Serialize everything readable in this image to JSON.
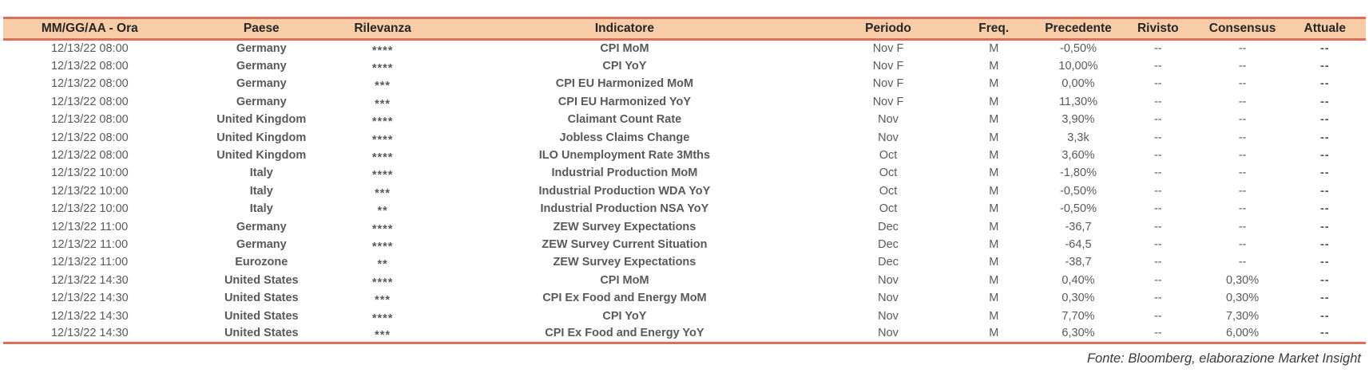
{
  "colors": {
    "accent_border": "#DE6E5A",
    "header_bg": "#F8CCA6",
    "relevance_star": "#E2604C",
    "header_text": "#262626",
    "bold_text": "#1a1a1a",
    "muted_text": "#595959"
  },
  "table": {
    "columns": [
      {
        "key": "datetime",
        "label": "MM/GG/AA - Ora"
      },
      {
        "key": "country",
        "label": "Paese"
      },
      {
        "key": "relevance",
        "label": "Rilevanza"
      },
      {
        "key": "indicator",
        "label": "Indicatore"
      },
      {
        "key": "period",
        "label": "Periodo"
      },
      {
        "key": "freq",
        "label": "Freq."
      },
      {
        "key": "previous",
        "label": "Precedente"
      },
      {
        "key": "revised",
        "label": "Rivisto"
      },
      {
        "key": "consensus",
        "label": "Consensus"
      },
      {
        "key": "actual",
        "label": "Attuale"
      }
    ],
    "rows": [
      [
        "12/13/22 08:00",
        "Germany",
        "****",
        "CPI MoM",
        "Nov F",
        "M",
        "-0,50%",
        "--",
        "--",
        "--"
      ],
      [
        "12/13/22 08:00",
        "Germany",
        "****",
        "CPI YoY",
        "Nov F",
        "M",
        "10,00%",
        "--",
        "--",
        "--"
      ],
      [
        "12/13/22 08:00",
        "Germany",
        "***",
        "CPI EU Harmonized MoM",
        "Nov F",
        "M",
        "0,00%",
        "--",
        "--",
        "--"
      ],
      [
        "12/13/22 08:00",
        "Germany",
        "***",
        "CPI EU Harmonized YoY",
        "Nov F",
        "M",
        "11,30%",
        "--",
        "--",
        "--"
      ],
      [
        "12/13/22 08:00",
        "United Kingdom",
        "****",
        "Claimant Count Rate",
        "Nov",
        "M",
        "3,90%",
        "--",
        "--",
        "--"
      ],
      [
        "12/13/22 08:00",
        "United Kingdom",
        "****",
        "Jobless Claims Change",
        "Nov",
        "M",
        "3,3k",
        "--",
        "--",
        "--"
      ],
      [
        "12/13/22 08:00",
        "United Kingdom",
        "****",
        "ILO Unemployment Rate 3Mths",
        "Oct",
        "M",
        "3,60%",
        "--",
        "--",
        "--"
      ],
      [
        "12/13/22 10:00",
        "Italy",
        "****",
        "Industrial Production MoM",
        "Oct",
        "M",
        "-1,80%",
        "--",
        "--",
        "--"
      ],
      [
        "12/13/22 10:00",
        "Italy",
        "***",
        "Industrial Production WDA YoY",
        "Oct",
        "M",
        "-0,50%",
        "--",
        "--",
        "--"
      ],
      [
        "12/13/22 10:00",
        "Italy",
        "**",
        "Industrial Production NSA YoY",
        "Oct",
        "M",
        "-0,50%",
        "--",
        "--",
        "--"
      ],
      [
        "12/13/22 11:00",
        "Germany",
        "****",
        "ZEW Survey Expectations",
        "Dec",
        "M",
        "-36,7",
        "--",
        "--",
        "--"
      ],
      [
        "12/13/22 11:00",
        "Germany",
        "****",
        "ZEW Survey Current Situation",
        "Dec",
        "M",
        "-64,5",
        "--",
        "--",
        "--"
      ],
      [
        "12/13/22 11:00",
        "Eurozone",
        "**",
        "ZEW Survey Expectations",
        "Dec",
        "M",
        "-38,7",
        "--",
        "--",
        "--"
      ],
      [
        "12/13/22 14:30",
        "United States",
        "****",
        "CPI MoM",
        "Nov",
        "M",
        "0,40%",
        "--",
        "0,30%",
        "--"
      ],
      [
        "12/13/22 14:30",
        "United States",
        "***",
        "CPI Ex Food and Energy MoM",
        "Nov",
        "M",
        "0,30%",
        "--",
        "0,30%",
        "--"
      ],
      [
        "12/13/22 14:30",
        "United States",
        "****",
        "CPI YoY",
        "Nov",
        "M",
        "7,70%",
        "--",
        "7,30%",
        "--"
      ],
      [
        "12/13/22 14:30",
        "United States",
        "***",
        "CPI Ex Food and Energy YoY",
        "Nov",
        "M",
        "6,30%",
        "--",
        "6,00%",
        "--"
      ]
    ]
  },
  "footer": {
    "source_note": "Fonte: Bloomberg, elaborazione Market Insight"
  }
}
